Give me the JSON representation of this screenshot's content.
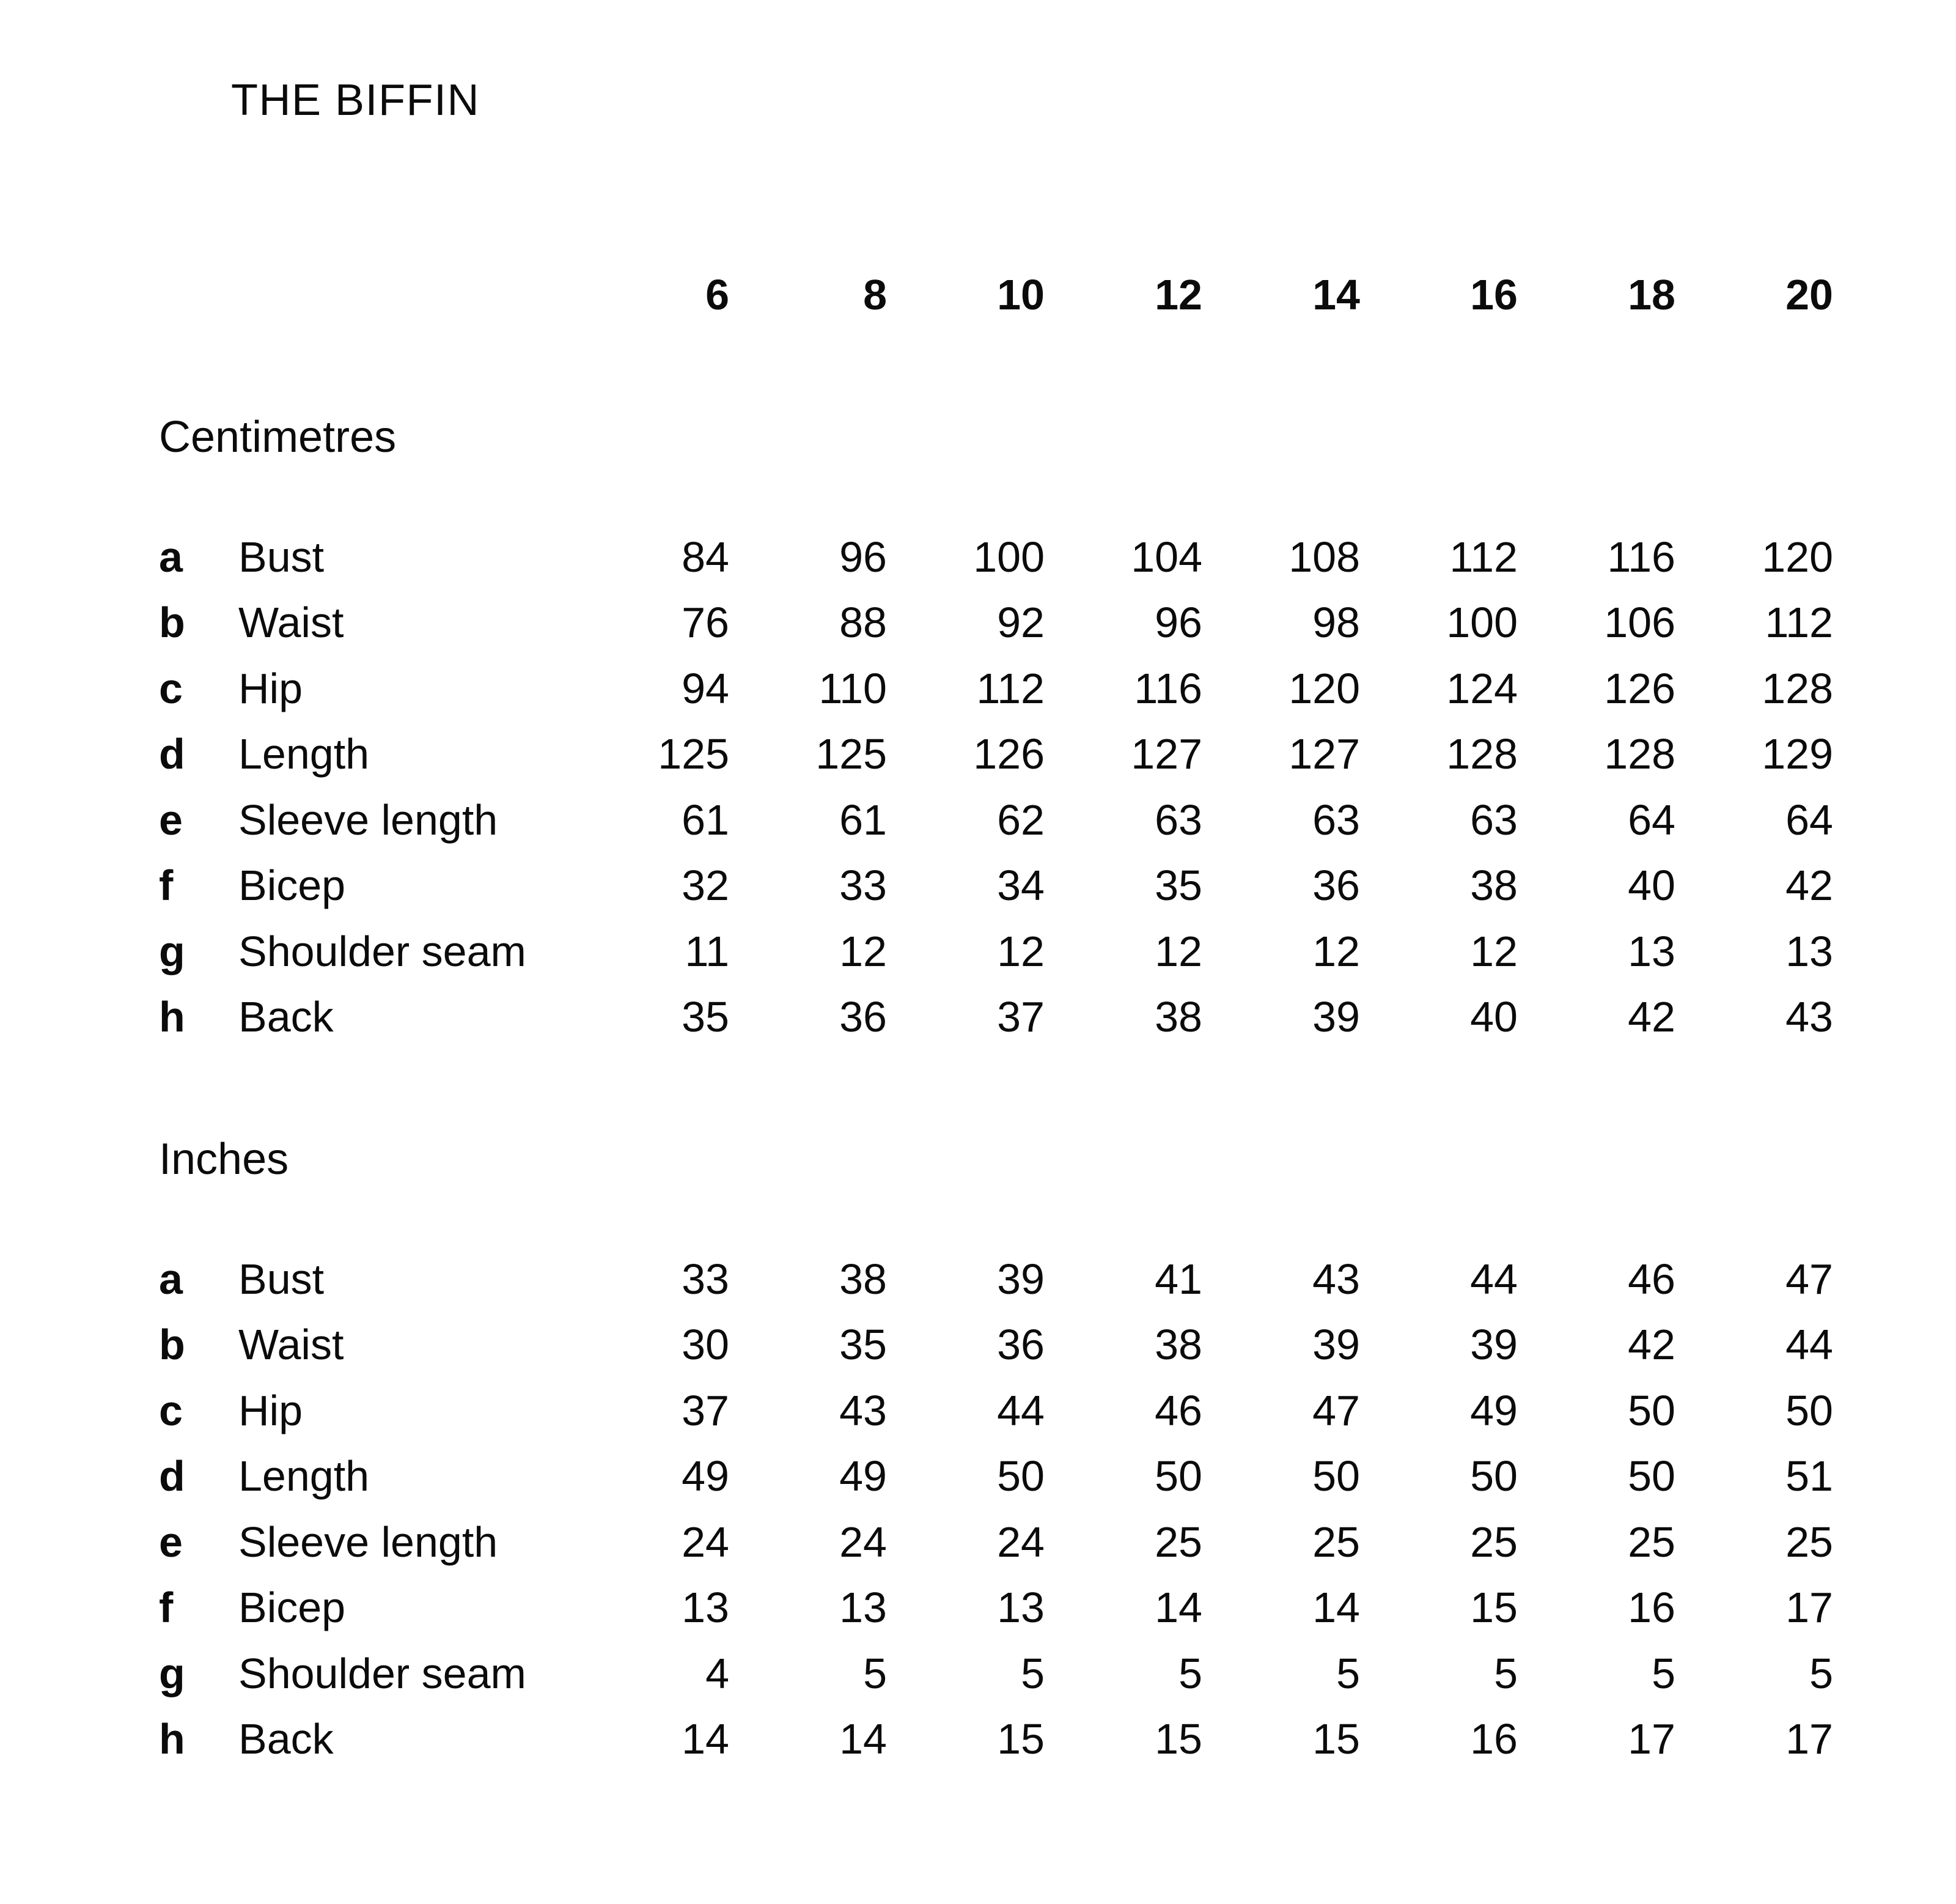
{
  "title": "THE BIFFIN",
  "colors": {
    "background": "#ffffff",
    "text": "#0b0b0b"
  },
  "size_chart": {
    "sizes": [
      "6",
      "8",
      "10",
      "12",
      "14",
      "16",
      "18",
      "20"
    ],
    "sections": [
      {
        "unit_label": "Centimetres",
        "rows": [
          {
            "letter": "a",
            "label": "Bust",
            "values": [
              "84",
              "96",
              "100",
              "104",
              "108",
              "112",
              "116",
              "120"
            ]
          },
          {
            "letter": "b",
            "label": "Waist",
            "values": [
              "76",
              "88",
              "92",
              "96",
              "98",
              "100",
              "106",
              "112"
            ]
          },
          {
            "letter": "c",
            "label": "Hip",
            "values": [
              "94",
              "110",
              "112",
              "116",
              "120",
              "124",
              "126",
              "128"
            ]
          },
          {
            "letter": "d",
            "label": "Length",
            "values": [
              "125",
              "125",
              "126",
              "127",
              "127",
              "128",
              "128",
              "129"
            ]
          },
          {
            "letter": "e",
            "label": "Sleeve length",
            "values": [
              "61",
              "61",
              "62",
              "63",
              "63",
              "63",
              "64",
              "64"
            ]
          },
          {
            "letter": "f",
            "label": "Bicep",
            "values": [
              "32",
              "33",
              "34",
              "35",
              "36",
              "38",
              "40",
              "42"
            ]
          },
          {
            "letter": "g",
            "label": "Shoulder seam",
            "values": [
              "11",
              "12",
              "12",
              "12",
              "12",
              "12",
              "13",
              "13"
            ]
          },
          {
            "letter": "h",
            "label": "Back",
            "values": [
              "35",
              "36",
              "37",
              "38",
              "39",
              "40",
              "42",
              "43"
            ]
          }
        ]
      },
      {
        "unit_label": "Inches",
        "rows": [
          {
            "letter": "a",
            "label": "Bust",
            "values": [
              "33",
              "38",
              "39",
              "41",
              "43",
              "44",
              "46",
              "47"
            ]
          },
          {
            "letter": "b",
            "label": "Waist",
            "values": [
              "30",
              "35",
              "36",
              "38",
              "39",
              "39",
              "42",
              "44"
            ]
          },
          {
            "letter": "c",
            "label": "Hip",
            "values": [
              "37",
              "43",
              "44",
              "46",
              "47",
              "49",
              "50",
              "50"
            ]
          },
          {
            "letter": "d",
            "label": "Length",
            "values": [
              "49",
              "49",
              "50",
              "50",
              "50",
              "50",
              "50",
              "51"
            ]
          },
          {
            "letter": "e",
            "label": "Sleeve length",
            "values": [
              "24",
              "24",
              "24",
              "25",
              "25",
              "25",
              "25",
              "25"
            ]
          },
          {
            "letter": "f",
            "label": "Bicep",
            "values": [
              "13",
              "13",
              "13",
              "14",
              "14",
              "15",
              "16",
              "17"
            ]
          },
          {
            "letter": "g",
            "label": "Shoulder seam",
            "values": [
              "4",
              "5",
              "5",
              "5",
              "5",
              "5",
              "5",
              "5"
            ]
          },
          {
            "letter": "h",
            "label": "Back",
            "values": [
              "14",
              "14",
              "15",
              "15",
              "15",
              "16",
              "17",
              "17"
            ]
          }
        ]
      }
    ]
  }
}
